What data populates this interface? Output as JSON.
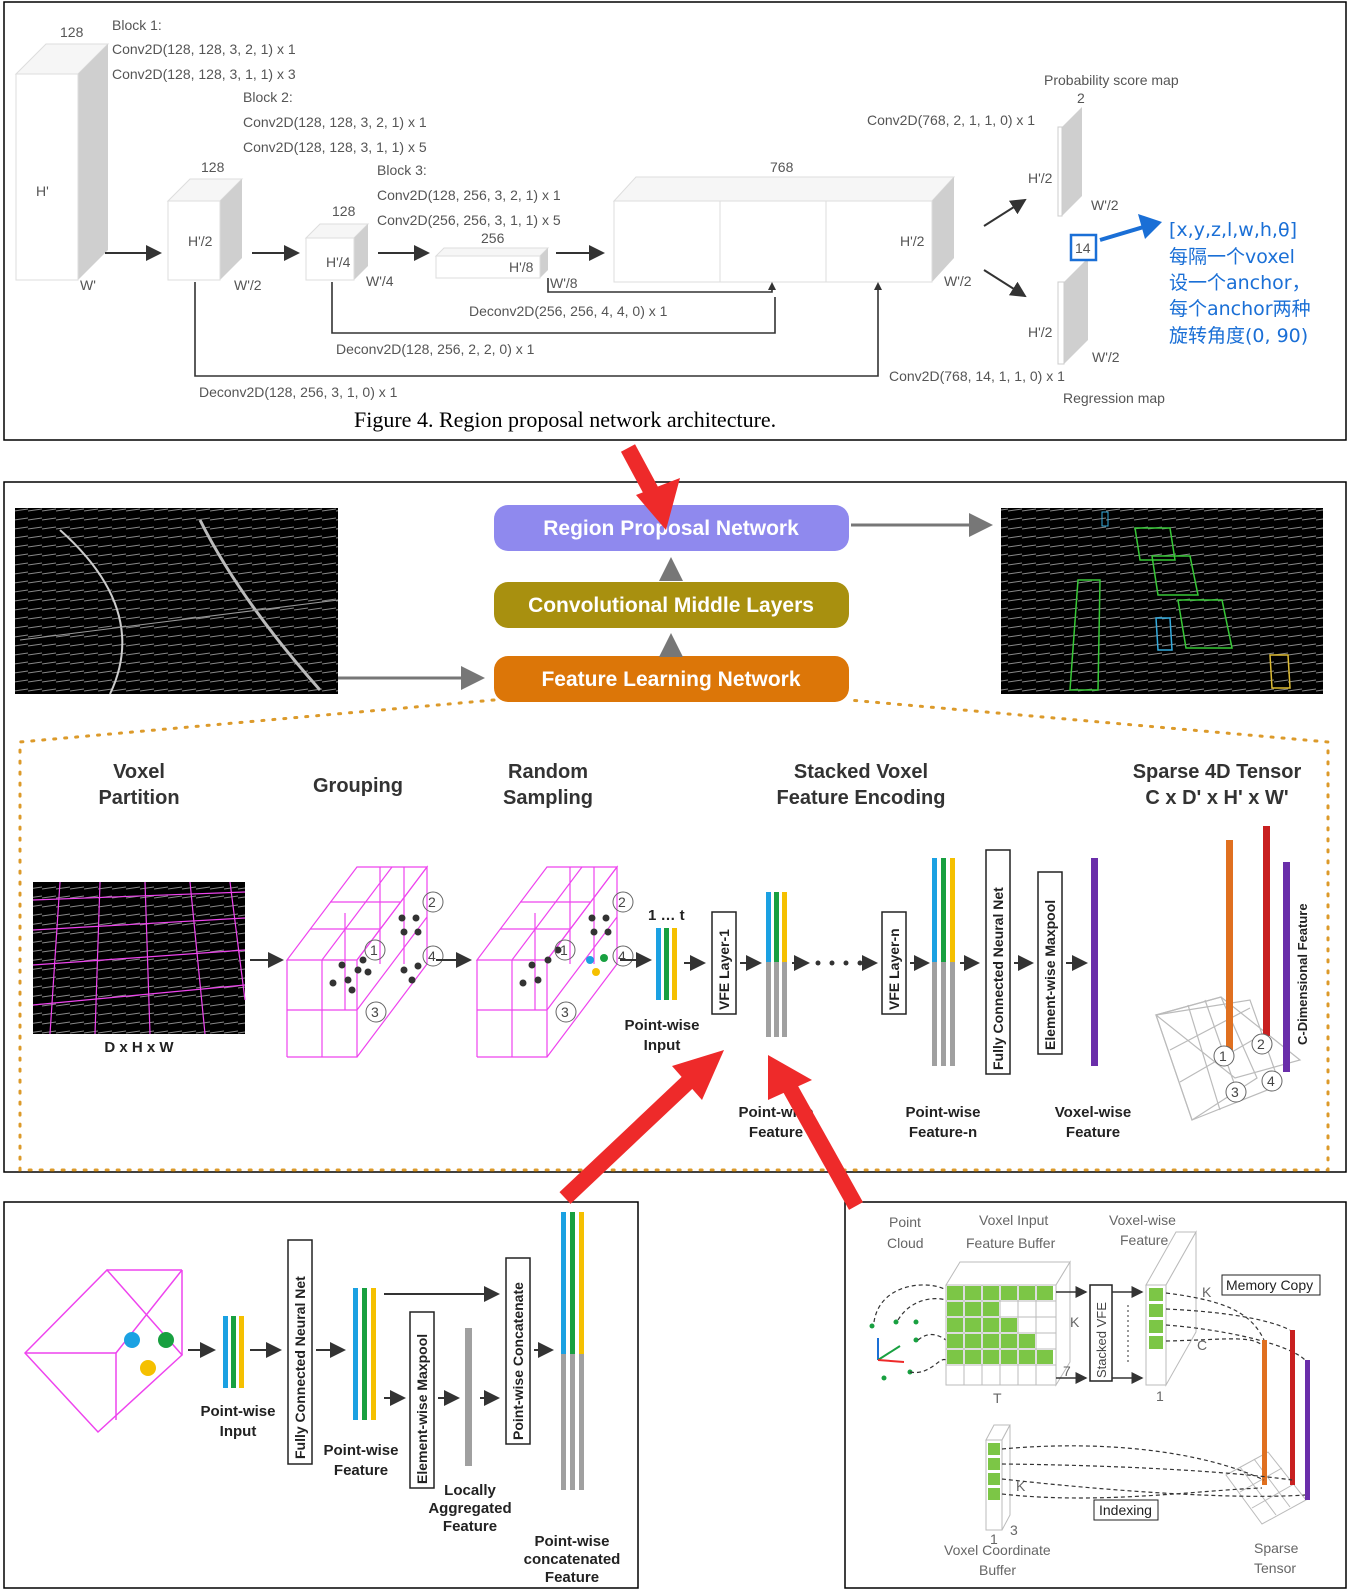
{
  "rpn": {
    "block1_title": "Block 1:",
    "block1_l1": "Conv2D(128, 128, 3, 2, 1) x 1",
    "block1_l2": "Conv2D(128, 128, 3, 1, 1) x 3",
    "block2_title": "Block 2:",
    "block2_l1": "Conv2D(128, 128, 3, 2, 1) x 1",
    "block2_l2": "Conv2D(128, 128, 3, 1, 1) x 5",
    "block3_title": "Block 3:",
    "block3_l1": "Conv2D(128, 256, 3, 2, 1) x 1",
    "block3_l2": "Conv2D(256, 256, 3, 1, 1) x 5",
    "c128a": "128",
    "c128b": "128",
    "c128c": "128",
    "c256": "256",
    "c768": "768",
    "c2": "2",
    "c14": "14",
    "h1": "H'",
    "w1": "W'",
    "h2": "H'/2",
    "w2": "W'/2",
    "h4": "H'/4",
    "w4": "W'/4",
    "h8": "H'/8",
    "w8": "W'/8",
    "h2b": "H'/2",
    "w2b": "W'/2",
    "h2c": "H'/2",
    "w2c": "W'/2",
    "h2d": "H'/2",
    "w2d": "W'/2",
    "deconv1": "Deconv2D(256, 256, 4, 4, 0) x 1",
    "deconv2": "Deconv2D(128, 256, 2, 2, 0) x 1",
    "deconv3": "Deconv2D(128, 256, 3, 1, 0) x 1",
    "prob_map": "Probability score map",
    "conv_prob": "Conv2D(768, 2, 1, 1, 0) x 1",
    "conv_reg": "Conv2D(768, 14, 1, 1, 0) x 1",
    "reg_map": "Regression map",
    "anno1": "[x,y,z,l,w,h,θ]",
    "anno2": "每隔一个voxel",
    "anno3": "设一个anchor，",
    "anno4": "每个anchor两种",
    "anno5": "旋转角度(0, 90)",
    "caption": "Figure 4. Region proposal network architecture."
  },
  "pipeline": {
    "rpn_label": "Region Proposal Network",
    "cml_label": "Convolutional Middle Layers",
    "fln_label": "Feature Learning Network"
  },
  "fln": {
    "voxel_partition": "Voxel",
    "voxel_partition2": "Partition",
    "grouping": "Grouping",
    "random": "Random",
    "sampling": "Sampling",
    "svfe1": "Stacked Voxel",
    "svfe2": "Feature Encoding",
    "sparse1": "Sparse 4D Tensor",
    "sparse2": "C x D' x H' x W'",
    "dhw": "D x H x W",
    "one_t": "1 … t",
    "pw_input1": "Point-wise",
    "pw_input2": "Input",
    "vfe1": "VFE Layer-1",
    "vfen": "VFE Layer-n",
    "fcn": "Fully Connected Neural Net",
    "ewm": "Element-wise Maxpool",
    "pwf1a": "Point-wise",
    "pwf1b": "Feature",
    "pwfn1": "Point-wise",
    "pwfn2": "Feature-n",
    "vwf1": "Voxel-wise",
    "vwf2": "Feature",
    "cdim": "C-Dimensional Feature",
    "n1": "1",
    "n2": "2",
    "n3": "3",
    "n4": "4"
  },
  "vfe": {
    "pw_input1": "Point-wise",
    "pw_input2": "Input",
    "fcn": "Fully Connected Neural Net",
    "pwf1": "Point-wise",
    "pwf2": "Feature",
    "ewm": "Element-wise Maxpool",
    "laf1": "Locally",
    "laf2": "Aggregated",
    "laf3": "Feature",
    "concat": "Point-wise Concatenate",
    "pwc1": "Point-wise",
    "pwc2": "concatenated",
    "pwc3": "Feature"
  },
  "impl": {
    "pc1": "Point",
    "pc2": "Cloud",
    "vib1": "Voxel Input",
    "vib2": "Feature  Buffer",
    "vwf1": "Voxel-wise",
    "vwf2": "Feature",
    "memcopy": "Memory Copy",
    "stacked": "Stacked VFE",
    "k1": "K",
    "k2": "K",
    "k3": "K",
    "c": "C",
    "seven": "7",
    "t": "T",
    "one1": "1",
    "one2": "1",
    "three": "3",
    "indexing": "Indexing",
    "vcb1": "Voxel Coordinate",
    "vcb2": "Buffer",
    "st1": "Sparse",
    "st2": "Tensor"
  },
  "colors": {
    "rpn_pill": "#8f89ee",
    "cml_pill": "#a8900f",
    "fln_pill": "#dc7608",
    "magenta": "#ee44ee",
    "blue_bar": "#1ba1e2",
    "green_bar": "#18a040",
    "yellow_bar": "#f5c000",
    "gray_bar": "#a0a0a0",
    "red_arrow": "#ee2a2a",
    "annotation_blue": "#1a6fd6"
  }
}
